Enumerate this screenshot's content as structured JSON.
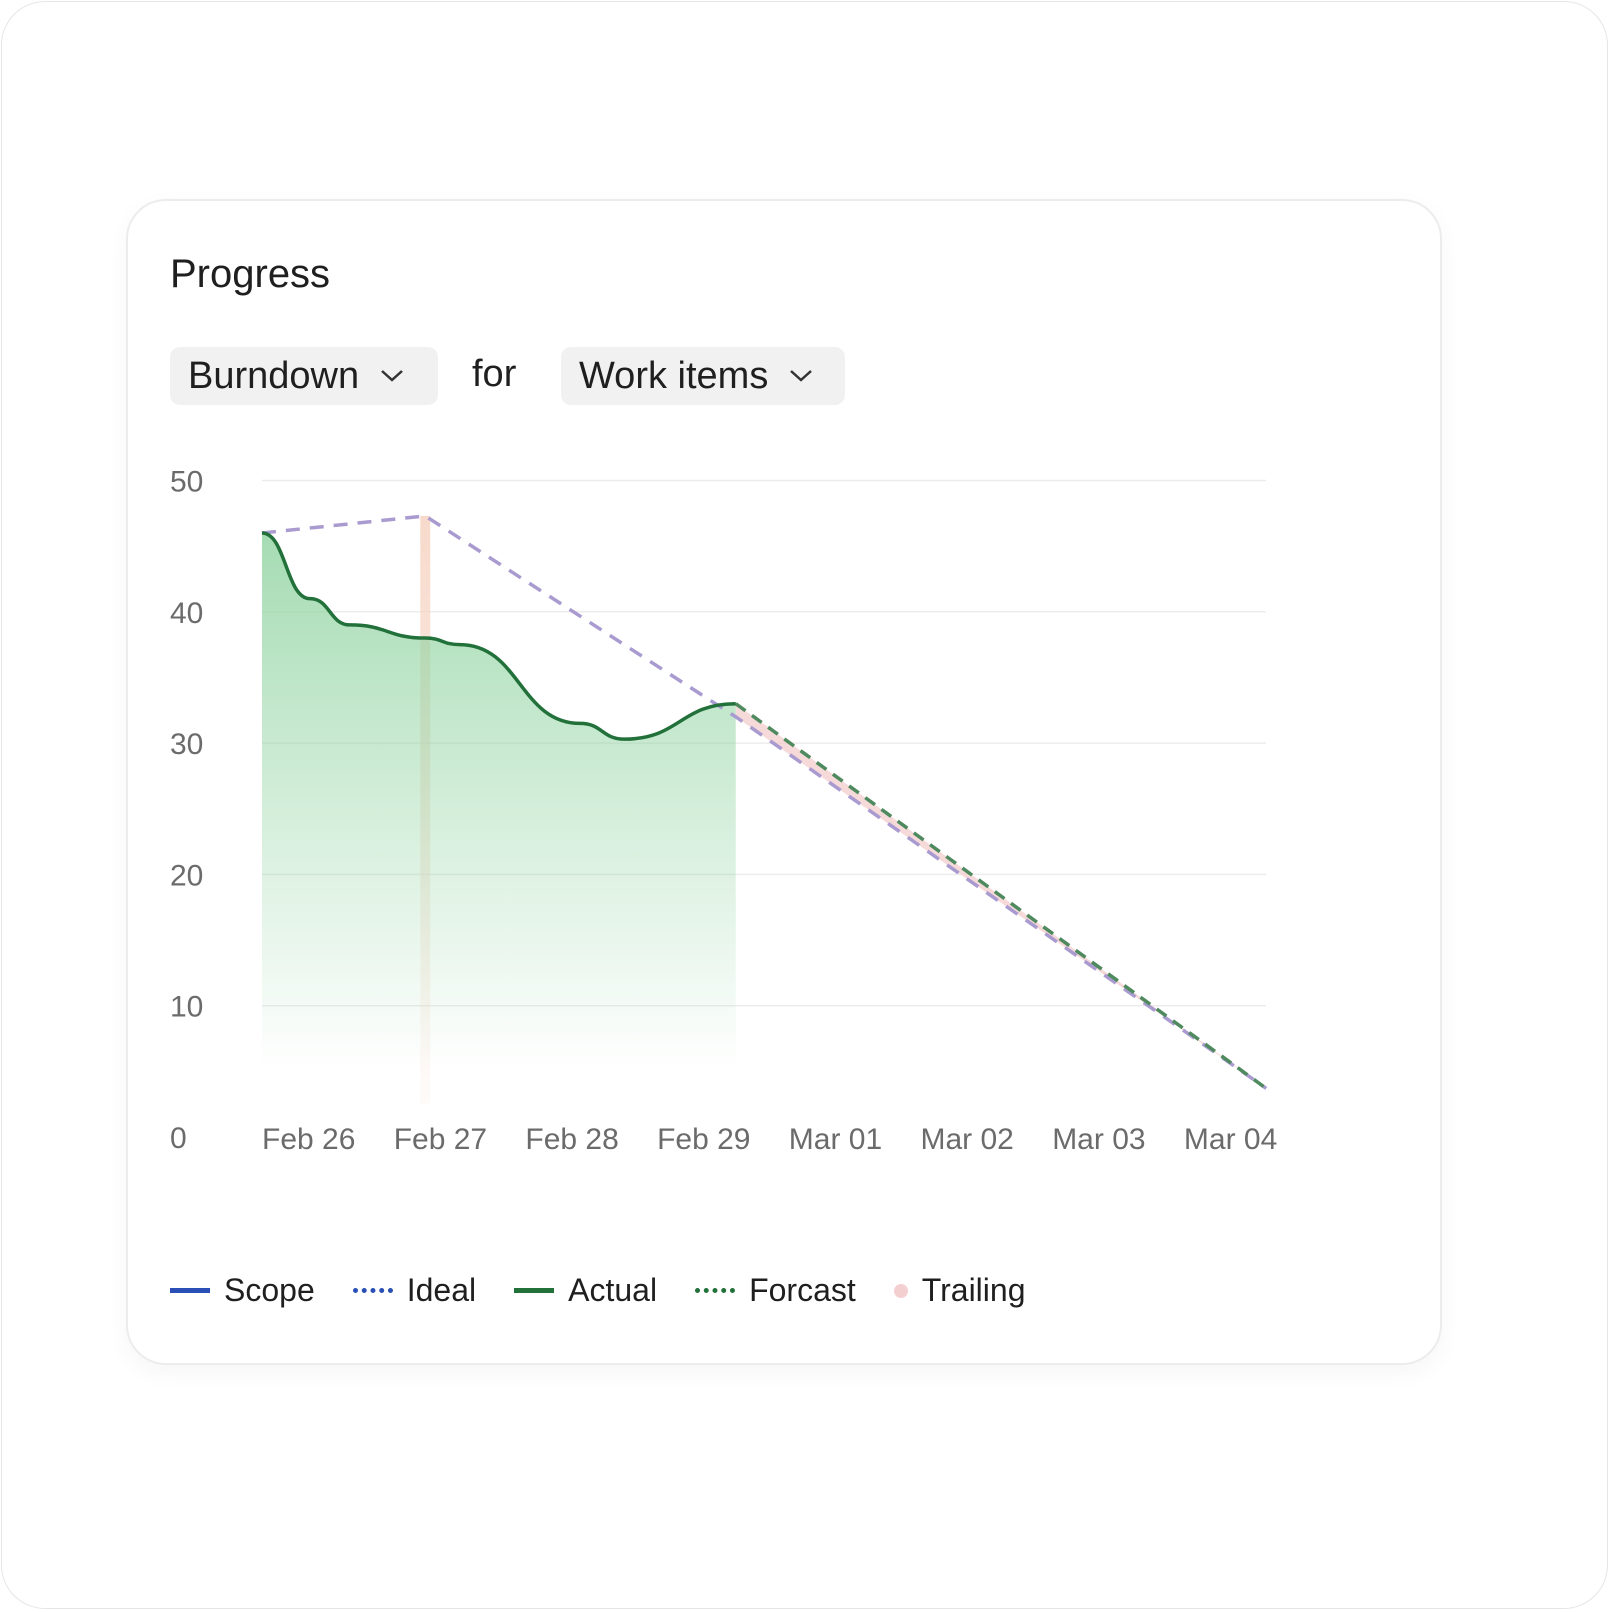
{
  "card": {
    "title": "Progress"
  },
  "controls": {
    "chart_type": "Burndown",
    "connector": "for",
    "subject": "Work items"
  },
  "chart_data": {
    "type": "line",
    "title": "",
    "xlabel": "",
    "ylabel": "",
    "ylim": [
      0,
      50
    ],
    "y_ticks": [
      "0",
      "10",
      "20",
      "30",
      "40",
      "50"
    ],
    "x_ticks": [
      "Feb 26",
      "Feb 27",
      "Feb 28",
      "Feb 29",
      "Mar 01",
      "Mar 02",
      "Mar 03",
      "Mar 04"
    ],
    "grid": true,
    "legend_placement": "bottom-left",
    "series": [
      {
        "name": "Scope",
        "color": "#2a4fb5",
        "style": "solid",
        "points": []
      },
      {
        "name": "Ideal",
        "color": "#a99bd0",
        "style": "dashed",
        "points": [
          [
            "Feb 26 00:00",
            46
          ],
          [
            "Feb 27 05:45",
            47.3
          ],
          [
            "Feb 29 14:20",
            32
          ],
          [
            "Mar 04 15:00",
            3.7
          ]
        ]
      },
      {
        "name": "Actual",
        "color": "#22703a",
        "style": "solid",
        "fill": "#8fd3a0",
        "points": [
          [
            "Feb 26 00:00",
            46
          ],
          [
            "Feb 26 08:45",
            41
          ],
          [
            "Feb 26 16:00",
            39
          ],
          [
            "Feb 27 05:45",
            38
          ],
          [
            "Feb 27 12:00",
            37.5
          ],
          [
            "Feb 28 10:00",
            31.5
          ],
          [
            "Feb 28 18:00",
            30.3
          ],
          [
            "Feb 29 14:20",
            33
          ]
        ]
      },
      {
        "name": "Forcast",
        "color": "#4e8a5e",
        "style": "dashed",
        "points": [
          [
            "Feb 29 14:20",
            33
          ],
          [
            "Mar 04 15:00",
            3.7
          ]
        ]
      },
      {
        "name": "Trailing",
        "color": "#f4cfd0",
        "style": "band",
        "marker": [
          "Feb 27 05:45",
          47.3
        ]
      }
    ]
  },
  "legend": {
    "items": [
      {
        "label": "Scope",
        "color": "#2a4fb5",
        "style": "solid"
      },
      {
        "label": "Ideal",
        "color": "#2a4fb5",
        "style": "dotted"
      },
      {
        "label": "Actual",
        "color": "#22703a",
        "style": "solid"
      },
      {
        "label": "Forcast",
        "color": "#22703a",
        "style": "dotted"
      },
      {
        "label": "Trailing",
        "color": "#f4cfd0",
        "style": "dot"
      }
    ]
  }
}
